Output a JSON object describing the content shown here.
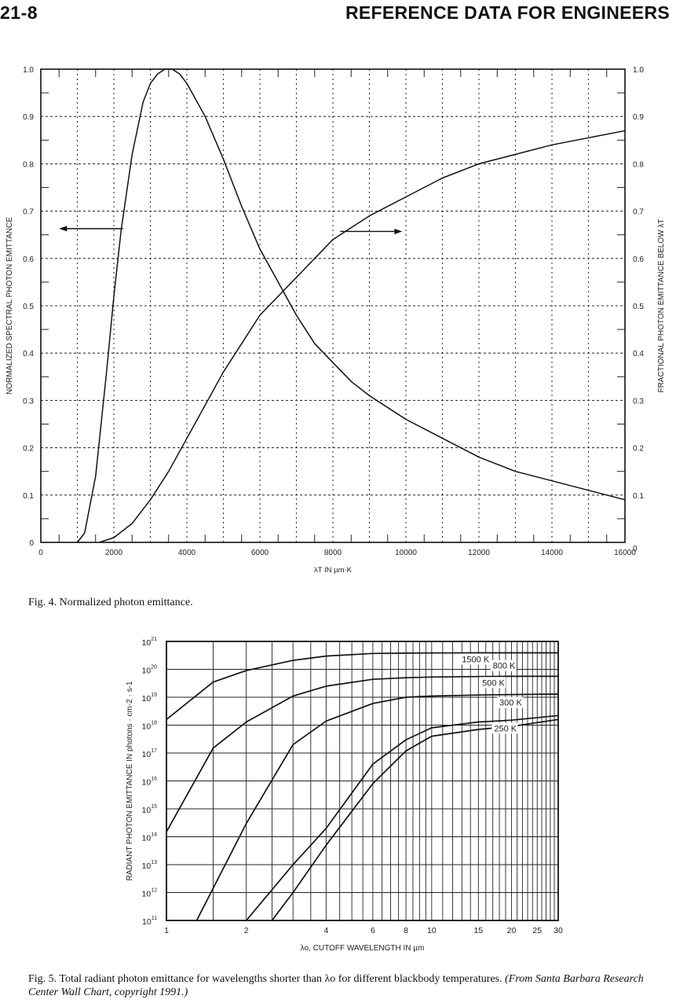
{
  "header": {
    "page_number": "21-8",
    "running_head": "REFERENCE DATA FOR ENGINEERS"
  },
  "figure4": {
    "caption": "Fig. 4. Normalized photon emittance.",
    "chart_data": {
      "type": "line",
      "xlabel": "λT IN µm·K",
      "ylabel_left": "NORMALIZED SPECTRAL PHOTON EMITTANCE",
      "ylabel_right": "FRACTIONAL PHOTON EMITTANCE BELOW λT",
      "xlim": [
        0,
        16000
      ],
      "ylim": [
        0,
        1.0
      ],
      "x_ticks": [
        "0",
        "2000",
        "4000",
        "6000",
        "8000",
        "10000",
        "12000",
        "14000",
        "16000"
      ],
      "y_ticks_left": [
        "0",
        "0.1",
        "0.2",
        "0.3",
        "0.4",
        "0.5",
        "0.6",
        "0.7",
        "0.8",
        "0.9",
        "1.0"
      ],
      "y_ticks_right": [
        "0",
        "0.1",
        "0.2",
        "0.3",
        "0.4",
        "0.5",
        "0.6",
        "0.7",
        "0.8",
        "0.9",
        "1.0"
      ],
      "grid": true,
      "series": [
        {
          "axis": "left",
          "x": [
            1000,
            1200,
            1500,
            1800,
            2000,
            2200,
            2500,
            2800,
            3000,
            3200,
            3400,
            3600,
            3800,
            4000,
            4500,
            5000,
            5500,
            6000,
            6500,
            7000,
            7500,
            8000,
            8500,
            9000,
            10000,
            11000,
            12000,
            13000,
            14000,
            15000,
            16000
          ],
          "y": [
            0.0,
            0.02,
            0.14,
            0.36,
            0.52,
            0.66,
            0.82,
            0.93,
            0.97,
            0.99,
            1.0,
            1.0,
            0.99,
            0.97,
            0.9,
            0.81,
            0.71,
            0.62,
            0.55,
            0.48,
            0.42,
            0.38,
            0.34,
            0.31,
            0.26,
            0.22,
            0.18,
            0.15,
            0.13,
            0.11,
            0.09
          ]
        },
        {
          "axis": "right",
          "x": [
            1600,
            2000,
            2500,
            3000,
            3500,
            4000,
            4500,
            5000,
            6000,
            7000,
            8000,
            9000,
            10000,
            11000,
            12000,
            13000,
            14000,
            15000,
            16000
          ],
          "y": [
            0.0,
            0.01,
            0.04,
            0.09,
            0.15,
            0.22,
            0.29,
            0.36,
            0.48,
            0.56,
            0.64,
            0.69,
            0.73,
            0.77,
            0.8,
            0.82,
            0.84,
            0.855,
            0.87
          ]
        }
      ]
    }
  },
  "figure5": {
    "caption_main": "Fig. 5. Total radiant photon emittance for wavelengths shorter than λo for different blackbody temperatures. ",
    "caption_source": "(From Santa Barbara Research Center Wall Chart, copyright 1991.)",
    "chart_data": {
      "type": "line",
      "xlabel": "λo, CUTOFF WAVELENGTH IN µm",
      "ylabel": "RADIANT PHOTON EMITTANCE IN photons · cm-2 · s-1",
      "y_scale": "log",
      "ylim": [
        100000000000.0,
        1e+21
      ],
      "xlim": [
        1,
        30
      ],
      "x_ticks": [
        "1",
        "2",
        "4",
        "6",
        "8",
        "10",
        "15",
        "20",
        "25",
        "30"
      ],
      "y_ticks": [
        {
          "base": "10",
          "exp": "21"
        },
        {
          "base": "10",
          "exp": "20"
        },
        {
          "base": "10",
          "exp": "19"
        },
        {
          "base": "10",
          "exp": "18"
        },
        {
          "base": "10",
          "exp": "17"
        },
        {
          "base": "10",
          "exp": "16"
        },
        {
          "base": "10",
          "exp": "15"
        },
        {
          "base": "10",
          "exp": "14"
        },
        {
          "base": "10",
          "exp": "13"
        },
        {
          "base": "10",
          "exp": "12"
        },
        {
          "base": "10",
          "exp": "11"
        }
      ],
      "grid": true,
      "curve_labels": [
        "1500 K",
        "800 K",
        "500 K",
        "300 K",
        "250 K"
      ],
      "series": [
        {
          "name": "1500 K",
          "x": [
            1,
            1.5,
            2,
            3,
            4,
            6,
            8,
            10,
            15,
            20,
            30
          ],
          "y": [
            1.6e+18,
            3.5e+19,
            9e+19,
            2.1e+20,
            3e+20,
            3.7e+20,
            3.8e+20,
            3.85e+20,
            3.9e+20,
            3.9e+20,
            3.9e+20
          ]
        },
        {
          "name": "800 K",
          "x": [
            1,
            1.5,
            2,
            3,
            4,
            6,
            8,
            10,
            15,
            20,
            30
          ],
          "y": [
            150000000000000.0,
            1.5e+17,
            1.3e+18,
            1.1e+19,
            2.5e+19,
            4.4e+19,
            5e+19,
            5.3e+19,
            5.5e+19,
            5.6e+19,
            5.6e+19
          ]
        },
        {
          "name": "500 K",
          "x": [
            1.3,
            2,
            3,
            4,
            6,
            8,
            10,
            15,
            20,
            30
          ],
          "y": [
            100000000000.0,
            300000000000000.0,
            2e+17,
            1.4e+18,
            6e+18,
            1e+19,
            1.1e+19,
            1.2e+19,
            1.25e+19,
            1.3e+19
          ]
        },
        {
          "name": "300 K",
          "x": [
            2,
            3,
            4,
            6,
            8,
            10,
            15,
            20,
            30
          ],
          "y": [
            100000000000.0,
            10000000000000.0,
            200000000000000.0,
            4e+16,
            3e+17,
            8e+17,
            1.3e+18,
            1.5e+18,
            2.2e+18
          ]
        },
        {
          "name": "250 K",
          "x": [
            2.5,
            3,
            4,
            6,
            8,
            10,
            15,
            20,
            30
          ],
          "y": [
            100000000000.0,
            1000000000000.0,
            50000000000000.0,
            8000000000000000.0,
            1.2e+17,
            4e+17,
            7e+17,
            9e+17,
            1.6e+18
          ]
        }
      ]
    }
  }
}
